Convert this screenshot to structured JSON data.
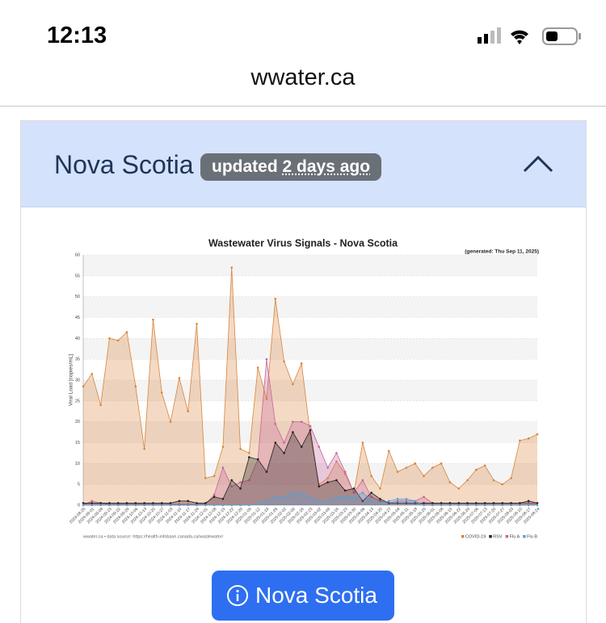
{
  "status": {
    "time": "12:13"
  },
  "browser": {
    "url": "wwater.ca"
  },
  "panel": {
    "title": "Nova Scotia",
    "badge_prefix": "updated",
    "badge_time": "2 days ago"
  },
  "button": {
    "label": "Nova Scotia"
  },
  "chart_data": {
    "type": "area",
    "title": "Wastewater Virus Signals - Nova Scotia",
    "subtitle": "(generated: Thu Sep 11, 2025)",
    "y_label": "Viral Load [copies/mL]",
    "footnote": "wwater.ca • data source: https://health-infobase.canada.ca/wastewater/",
    "categories": [
      "2024-08-25",
      "2024-09-01",
      "2024-09-08",
      "2024-09-15",
      "2024-09-22",
      "2024-09-29",
      "2024-10-06",
      "2024-10-13",
      "2024-10-20",
      "2024-10-27",
      "2024-11-03",
      "2024-11-10",
      "2024-11-17",
      "2024-11-24",
      "2024-12-01",
      "2024-12-08",
      "2024-12-15",
      "2024-12-22",
      "2024-12-29",
      "2025-01-05",
      "2025-01-12",
      "2025-01-19",
      "2025-01-26",
      "2025-02-02",
      "2025-02-09",
      "2025-02-16",
      "2025-02-23",
      "2025-03-02",
      "2025-03-09",
      "2025-03-16",
      "2025-03-23",
      "2025-03-30",
      "2025-04-06",
      "2025-04-13",
      "2025-04-20",
      "2025-04-27",
      "2025-05-04",
      "2025-05-11",
      "2025-05-18",
      "2025-05-25",
      "2025-06-01",
      "2025-06-08",
      "2025-06-15",
      "2025-06-22",
      "2025-06-29",
      "2025-07-06",
      "2025-07-13",
      "2025-07-20",
      "2025-07-27",
      "2025-08-03",
      "2025-08-10",
      "2025-08-17",
      "2025-08-24"
    ],
    "series": [
      {
        "name": "COVID-19",
        "color": "#d9843b",
        "values": [
          28.5,
          31.5,
          24,
          40,
          39.5,
          41.5,
          28.5,
          13.5,
          44.5,
          27,
          20,
          30.5,
          22.5,
          43.5,
          6.5,
          7,
          14,
          57,
          13.5,
          12.5,
          33,
          25.5,
          49.5,
          34.5,
          29,
          34,
          17,
          5,
          6.5,
          10.5,
          7.5,
          3,
          15,
          7,
          4,
          13,
          8,
          9,
          10,
          7,
          9,
          10,
          5.5,
          4,
          6,
          8.5,
          9.5,
          6,
          5,
          6.5,
          15.5,
          16,
          17
        ]
      },
      {
        "name": "Flu A",
        "color": "#c7649b",
        "values": [
          0,
          1,
          0.5,
          0.2,
          0.2,
          0.2,
          0.2,
          0.2,
          0.2,
          0.2,
          0.2,
          0.2,
          0.2,
          0.2,
          0.2,
          2.5,
          9,
          4.5,
          5.5,
          6,
          11,
          35,
          19.5,
          15,
          20,
          20,
          19,
          14,
          9,
          12.5,
          8,
          3,
          6,
          2,
          1,
          0.5,
          1,
          1,
          1,
          2,
          0.5,
          0.5,
          0.5,
          0.5,
          0.5,
          0.5,
          0.5,
          0.5,
          0.5,
          0.5,
          0.5,
          0.5,
          0.5
        ]
      },
      {
        "name": "RSV",
        "color": "#222222",
        "values": [
          0.5,
          0.5,
          0.5,
          0.5,
          0.5,
          0.5,
          0.5,
          0.5,
          0.5,
          0.5,
          0.5,
          1,
          1,
          0.5,
          0.5,
          2,
          1.5,
          6,
          4,
          11.5,
          11,
          8,
          15,
          12.5,
          17.5,
          14,
          18,
          4.5,
          5.5,
          6,
          3.5,
          4,
          1,
          3,
          1.5,
          0.5,
          0.5,
          0.5,
          0.5,
          0.5,
          0.5,
          0.5,
          0.5,
          0.5,
          0.5,
          0.5,
          0.5,
          0.5,
          0.5,
          0.5,
          0.5,
          1,
          0.5
        ]
      },
      {
        "name": "Flu B",
        "color": "#5aa0d8",
        "values": [
          0,
          0,
          0,
          0,
          0,
          0,
          0,
          0,
          0,
          0,
          0,
          0,
          0,
          0,
          0,
          0,
          0,
          0,
          0,
          0,
          0.5,
          1,
          2,
          2,
          3,
          3,
          2,
          1,
          1,
          2,
          2,
          2,
          3,
          1,
          0.5,
          1,
          1.5,
          1.5,
          1,
          0,
          0,
          0,
          0,
          0,
          0,
          0,
          0,
          0,
          0,
          0,
          0,
          0,
          0
        ]
      }
    ],
    "ylim": [
      0,
      60
    ],
    "yticks": [
      0,
      5,
      10,
      15,
      20,
      25,
      30,
      35,
      40,
      45,
      50,
      55,
      60
    ],
    "grid": true,
    "legend": "bottom-right"
  }
}
